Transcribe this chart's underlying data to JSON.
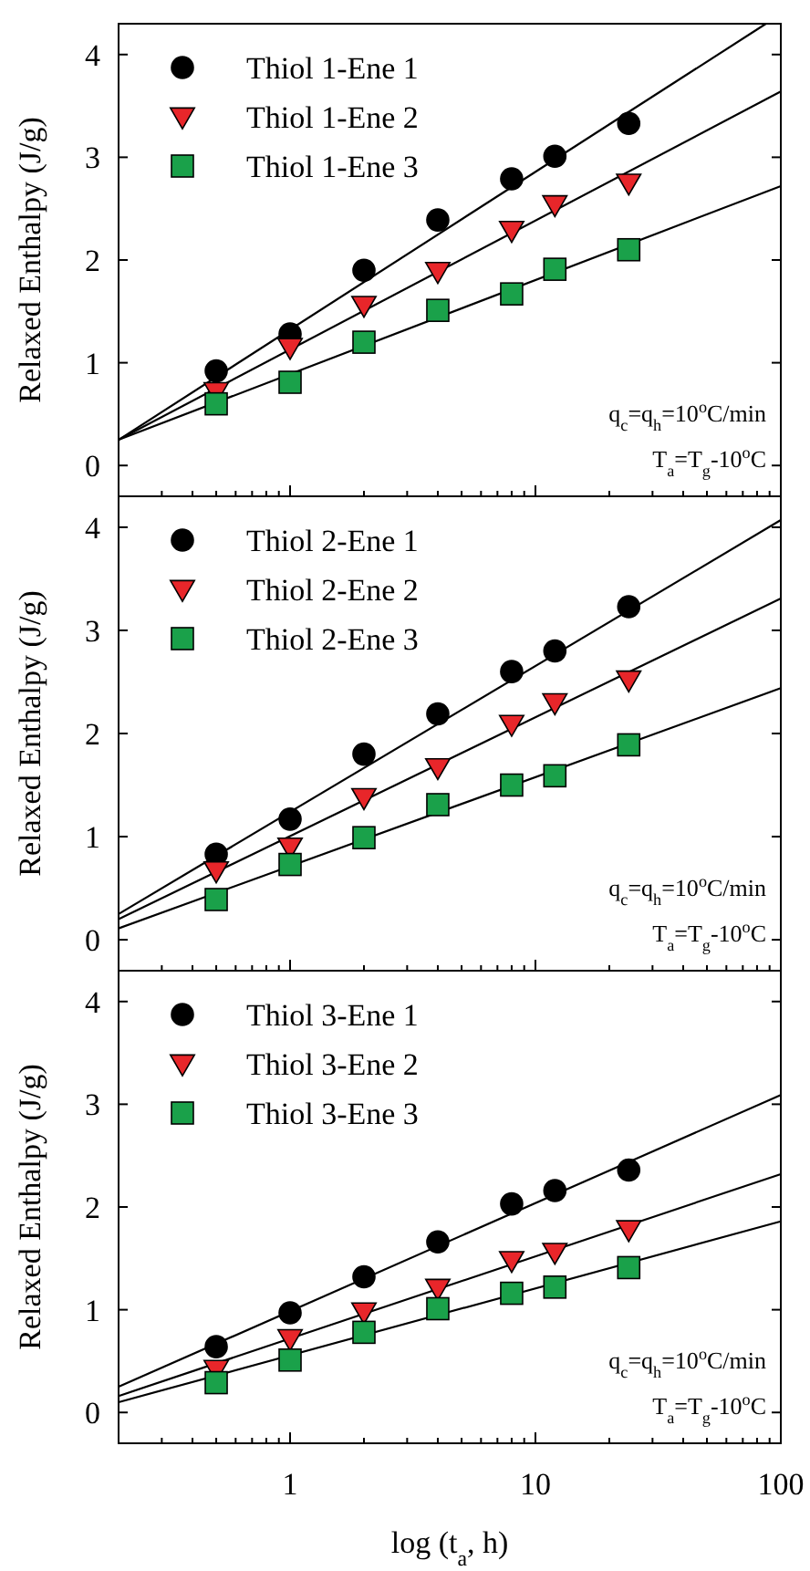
{
  "chart_data": [
    {
      "type": "scatter",
      "ylabel": "Relaxed Enthalpy (J/g)",
      "xlim": [
        0.2,
        100
      ],
      "ylim": [
        -0.3,
        4.3
      ],
      "log": "x",
      "tick_labels": "y",
      "legend": "top left",
      "grid": false,
      "xticks": [
        {
          "value": 0.2,
          "label": null
        },
        {
          "value": 0.3,
          "label": null
        },
        {
          "value": 0.4,
          "label": null
        },
        {
          "value": 0.5,
          "label": null
        },
        {
          "value": 0.6,
          "label": null
        },
        {
          "value": 0.7,
          "label": null
        },
        {
          "value": 0.8,
          "label": null
        },
        {
          "value": 0.9,
          "label": null
        },
        1,
        {
          "value": 2,
          "label": null
        },
        {
          "value": 3,
          "label": null
        },
        {
          "value": 4,
          "label": null
        },
        {
          "value": 5,
          "label": null
        },
        {
          "value": 6,
          "label": null
        },
        {
          "value": 7,
          "label": null
        },
        {
          "value": 8,
          "label": null
        },
        {
          "value": 9,
          "label": null
        },
        10,
        {
          "value": 20,
          "label": null
        },
        {
          "value": 30,
          "label": null
        },
        {
          "value": 40,
          "label": null
        },
        {
          "value": 50,
          "label": null
        },
        {
          "value": 60,
          "label": null
        },
        {
          "value": 70,
          "label": null
        },
        {
          "value": 80,
          "label": null
        },
        {
          "value": 90,
          "label": null
        },
        100
      ],
      "yticks": [
        0,
        1,
        2,
        3,
        4
      ],
      "annotations": [
        "q$_{c}$=q$_{h}$=10$^{o}$C/min",
        "T$_{a}$=T$_{g}$-10$^{o}$C"
      ],
      "series": [
        {
          "type": "line",
          "color": "#000000",
          "marker": "none",
          "x": [
            0.2,
            87
          ],
          "values": [
            0.25,
            4.3
          ]
        },
        {
          "type": "line",
          "color": "#000000",
          "marker": "none",
          "x": [
            0.2,
            100
          ],
          "values": [
            0.25,
            3.64
          ]
        },
        {
          "type": "line",
          "color": "#000000",
          "marker": "none",
          "x": [
            0.2,
            100
          ],
          "values": [
            0.25,
            2.72
          ]
        },
        {
          "type": "scatter",
          "name": "Thiol 1-Ene 1",
          "color": "#000000",
          "marker": "circle",
          "x": [
            0.5,
            1,
            2,
            4,
            8,
            12,
            24
          ],
          "values": [
            0.92,
            1.28,
            1.9,
            2.39,
            2.79,
            3.01,
            3.33
          ]
        },
        {
          "type": "scatter",
          "name": "Thiol 1-Ene 2",
          "color": "#e8262a",
          "marker": "triangle",
          "x": [
            0.5,
            1,
            2,
            4,
            8,
            12,
            24
          ],
          "values": [
            0.72,
            1.15,
            1.56,
            1.89,
            2.29,
            2.54,
            2.75
          ]
        },
        {
          "type": "scatter",
          "name": "Thiol 1-Ene 3",
          "color": "#1aa14a",
          "marker": "square",
          "x": [
            0.5,
            1,
            2,
            4,
            8,
            12,
            24
          ],
          "values": [
            0.6,
            0.81,
            1.2,
            1.51,
            1.67,
            1.91,
            2.1
          ]
        }
      ]
    },
    {
      "type": "scatter",
      "ylabel": "Relaxed Enthalpy (J/g)",
      "xlim": [
        0.2,
        100
      ],
      "ylim": [
        -0.3,
        4.3
      ],
      "log": "x",
      "tick_labels": "y",
      "legend": "top left",
      "grid": false,
      "xticks": [
        {
          "value": 0.2,
          "label": null
        },
        {
          "value": 0.3,
          "label": null
        },
        {
          "value": 0.4,
          "label": null
        },
        {
          "value": 0.5,
          "label": null
        },
        {
          "value": 0.6,
          "label": null
        },
        {
          "value": 0.7,
          "label": null
        },
        {
          "value": 0.8,
          "label": null
        },
        {
          "value": 0.9,
          "label": null
        },
        1,
        {
          "value": 2,
          "label": null
        },
        {
          "value": 3,
          "label": null
        },
        {
          "value": 4,
          "label": null
        },
        {
          "value": 5,
          "label": null
        },
        {
          "value": 6,
          "label": null
        },
        {
          "value": 7,
          "label": null
        },
        {
          "value": 8,
          "label": null
        },
        {
          "value": 9,
          "label": null
        },
        10,
        {
          "value": 20,
          "label": null
        },
        {
          "value": 30,
          "label": null
        },
        {
          "value": 40,
          "label": null
        },
        {
          "value": 50,
          "label": null
        },
        {
          "value": 60,
          "label": null
        },
        {
          "value": 70,
          "label": null
        },
        {
          "value": 80,
          "label": null
        },
        {
          "value": 90,
          "label": null
        },
        100
      ],
      "yticks": [
        0,
        1,
        2,
        3,
        4
      ],
      "annotations": [
        "q$_{c}$=q$_{h}$=10$^{o}$C/min",
        "T$_{a}$=T$_{g}$-10$^{o}$C"
      ],
      "series": [
        {
          "type": "line",
          "color": "#000000",
          "marker": "none",
          "x": [
            0.2,
            100
          ],
          "values": [
            0.25,
            4.07
          ]
        },
        {
          "type": "line",
          "color": "#000000",
          "marker": "none",
          "x": [
            0.2,
            100
          ],
          "values": [
            0.2,
            3.31
          ]
        },
        {
          "type": "line",
          "color": "#000000",
          "marker": "none",
          "x": [
            0.2,
            100
          ],
          "values": [
            0.11,
            2.44
          ]
        },
        {
          "type": "scatter",
          "name": "Thiol 2-Ene 1",
          "color": "#000000",
          "marker": "circle",
          "x": [
            0.5,
            1,
            2,
            4,
            8,
            12,
            24
          ],
          "values": [
            0.83,
            1.17,
            1.8,
            2.19,
            2.6,
            2.8,
            3.23
          ]
        },
        {
          "type": "scatter",
          "name": "Thiol 2-Ene 2",
          "color": "#e8262a",
          "marker": "triangle",
          "x": [
            0.5,
            1,
            2,
            4,
            8,
            12,
            24
          ],
          "values": [
            0.67,
            0.9,
            1.38,
            1.67,
            2.09,
            2.3,
            2.52
          ]
        },
        {
          "type": "scatter",
          "name": "Thiol 2-Ene 3",
          "color": "#1aa14a",
          "marker": "square",
          "x": [
            0.5,
            1,
            2,
            4,
            8,
            12,
            24
          ],
          "values": [
            0.39,
            0.73,
            0.99,
            1.31,
            1.5,
            1.59,
            1.89
          ]
        }
      ]
    },
    {
      "type": "scatter",
      "ylabel": "Relaxed Enthalpy (J/g)",
      "xlabel": "log (t$_{a}$, h)",
      "xlim": [
        0.2,
        100
      ],
      "ylim": [
        -0.3,
        4.3
      ],
      "log": "x",
      "legend": "top left",
      "grid": false,
      "xticks": [
        {
          "value": 0.2,
          "label": null
        },
        {
          "value": 0.3,
          "label": null
        },
        {
          "value": 0.4,
          "label": null
        },
        {
          "value": 0.5,
          "label": null
        },
        {
          "value": 0.6,
          "label": null
        },
        {
          "value": 0.7,
          "label": null
        },
        {
          "value": 0.8,
          "label": null
        },
        {
          "value": 0.9,
          "label": null
        },
        1,
        {
          "value": 2,
          "label": null
        },
        {
          "value": 3,
          "label": null
        },
        {
          "value": 4,
          "label": null
        },
        {
          "value": 5,
          "label": null
        },
        {
          "value": 6,
          "label": null
        },
        {
          "value": 7,
          "label": null
        },
        {
          "value": 8,
          "label": null
        },
        {
          "value": 9,
          "label": null
        },
        10,
        {
          "value": 20,
          "label": null
        },
        {
          "value": 30,
          "label": null
        },
        {
          "value": 40,
          "label": null
        },
        {
          "value": 50,
          "label": null
        },
        {
          "value": 60,
          "label": null
        },
        {
          "value": 70,
          "label": null
        },
        {
          "value": 80,
          "label": null
        },
        {
          "value": 90,
          "label": null
        },
        100
      ],
      "yticks": [
        0,
        1,
        2,
        3,
        4
      ],
      "annotations": [
        "q$_{c}$=q$_{h}$=10$^{o}$C/min",
        "T$_{a}$=T$_{g}$-10$^{o}$C"
      ],
      "series": [
        {
          "type": "line",
          "color": "#000000",
          "marker": "none",
          "x": [
            0.2,
            100
          ],
          "values": [
            0.25,
            3.09
          ]
        },
        {
          "type": "line",
          "color": "#000000",
          "marker": "none",
          "x": [
            0.2,
            100
          ],
          "values": [
            0.16,
            2.32
          ]
        },
        {
          "type": "line",
          "color": "#000000",
          "marker": "none",
          "x": [
            0.2,
            100
          ],
          "values": [
            0.1,
            1.86
          ]
        },
        {
          "type": "scatter",
          "name": "Thiol 3-Ene 1",
          "color": "#000000",
          "marker": "circle",
          "x": [
            0.5,
            1,
            2,
            4,
            8,
            12,
            24
          ],
          "values": [
            0.64,
            0.97,
            1.32,
            1.66,
            2.03,
            2.16,
            2.36
          ]
        },
        {
          "type": "scatter",
          "name": "Thiol 3-Ene 2",
          "color": "#e8262a",
          "marker": "triangle",
          "x": [
            0.5,
            1,
            2,
            4,
            8,
            12,
            24
          ],
          "values": [
            0.42,
            0.72,
            0.98,
            1.21,
            1.48,
            1.56,
            1.78
          ]
        },
        {
          "type": "scatter",
          "name": "Thiol 3-Ene 3",
          "color": "#1aa14a",
          "marker": "square",
          "x": [
            0.5,
            1,
            2,
            4,
            8,
            12,
            24
          ],
          "values": [
            0.29,
            0.51,
            0.78,
            1.01,
            1.16,
            1.22,
            1.41
          ]
        }
      ]
    }
  ]
}
